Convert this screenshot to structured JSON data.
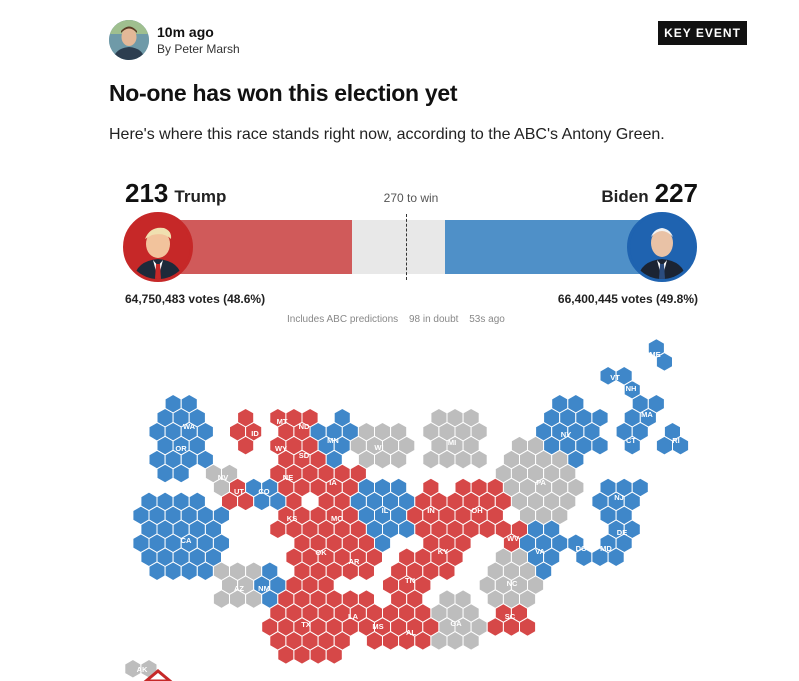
{
  "post": {
    "time": "10m ago",
    "byline": "By Peter Marsh",
    "badge": "KEY EVENT",
    "headline": "No-one has won this election yet",
    "lede": "Here's where this race stands right now, according to the ABC's Antony Green."
  },
  "race": {
    "target_label": "270 to win",
    "target": 270,
    "total": 538,
    "left": {
      "name": "Trump",
      "electoral_votes": 213,
      "votes_text": "64,750,483 votes (48.6%)",
      "color": "#d05a5a"
    },
    "right": {
      "name": "Biden",
      "electoral_votes": 227,
      "votes_text": "66,400,445 votes (49.8%)",
      "color": "#4f90c8"
    },
    "undecided_color": "#e8e8e8",
    "footnotes": [
      "Includes ABC predictions",
      "98 in doubt",
      "53s ago"
    ]
  },
  "map": {
    "colors": {
      "dem": "#3f87c9",
      "rep": "#d64848",
      "undecided": "#bdbdbd"
    },
    "states": [
      {
        "label": "ME",
        "party": "dem"
      },
      {
        "label": "VT",
        "party": "dem"
      },
      {
        "label": "NH",
        "party": "dem"
      },
      {
        "label": "MA",
        "party": "dem"
      },
      {
        "label": "NY",
        "party": "dem"
      },
      {
        "label": "CT",
        "party": "dem"
      },
      {
        "label": "RI",
        "party": "dem"
      },
      {
        "label": "WA",
        "party": "dem"
      },
      {
        "label": "OR",
        "party": "dem"
      },
      {
        "label": "ID",
        "party": "rep"
      },
      {
        "label": "MT",
        "party": "rep"
      },
      {
        "label": "ND",
        "party": "rep"
      },
      {
        "label": "WY",
        "party": "rep"
      },
      {
        "label": "SD",
        "party": "rep"
      },
      {
        "label": "MN",
        "party": "dem"
      },
      {
        "label": "WI",
        "party": "undecided"
      },
      {
        "label": "MI",
        "party": "undecided"
      },
      {
        "label": "NV",
        "party": "undecided"
      },
      {
        "label": "UT",
        "party": "rep"
      },
      {
        "label": "CO",
        "party": "dem"
      },
      {
        "label": "NE",
        "party": "rep"
      },
      {
        "label": "IA",
        "party": "rep"
      },
      {
        "label": "PA",
        "party": "undecided"
      },
      {
        "label": "NJ",
        "party": "dem"
      },
      {
        "label": "CA",
        "party": "dem"
      },
      {
        "label": "KS",
        "party": "rep"
      },
      {
        "label": "MO",
        "party": "rep"
      },
      {
        "label": "IL",
        "party": "dem"
      },
      {
        "label": "IN",
        "party": "rep"
      },
      {
        "label": "OH",
        "party": "rep"
      },
      {
        "label": "DE",
        "party": "dem"
      },
      {
        "label": "WV",
        "party": "rep"
      },
      {
        "label": "DC",
        "party": "dem"
      },
      {
        "label": "MD",
        "party": "dem"
      },
      {
        "label": "OK",
        "party": "rep"
      },
      {
        "label": "AR",
        "party": "rep"
      },
      {
        "label": "KY",
        "party": "rep"
      },
      {
        "label": "VA",
        "party": "dem"
      },
      {
        "label": "AZ",
        "party": "undecided"
      },
      {
        "label": "NM",
        "party": "dem"
      },
      {
        "label": "TN",
        "party": "rep"
      },
      {
        "label": "NC",
        "party": "undecided"
      },
      {
        "label": "TX",
        "party": "rep"
      },
      {
        "label": "LA",
        "party": "rep"
      },
      {
        "label": "MS",
        "party": "rep"
      },
      {
        "label": "AL",
        "party": "rep"
      },
      {
        "label": "GA",
        "party": "undecided"
      },
      {
        "label": "SC",
        "party": "rep"
      },
      {
        "label": "AK",
        "party": "undecided"
      }
    ]
  }
}
